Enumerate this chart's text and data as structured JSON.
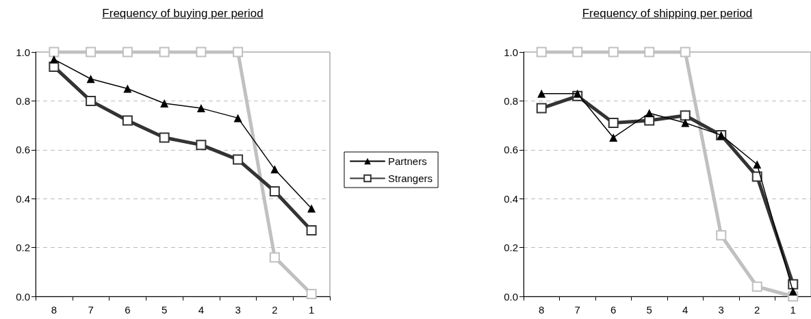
{
  "chart_data": [
    {
      "type": "line",
      "title": "Frequency of buying per period",
      "categories": [
        "8",
        "7",
        "6",
        "5",
        "4",
        "3",
        "2",
        "1"
      ],
      "series": [
        {
          "name": "Partners",
          "color": "#000000",
          "marker": "triangle",
          "values": [
            0.97,
            0.89,
            0.85,
            0.79,
            0.77,
            0.73,
            0.52,
            0.36
          ]
        },
        {
          "name": "Strangers",
          "color": "#333333",
          "marker": "square",
          "values": [
            0.94,
            0.8,
            0.72,
            0.65,
            0.62,
            0.56,
            0.43,
            0.27
          ]
        },
        {
          "color": "#c0c0c0",
          "marker": "square",
          "values": [
            1.0,
            1.0,
            1.0,
            1.0,
            1.0,
            1.0,
            0.16,
            0.01
          ]
        }
      ],
      "ylim": [
        0,
        1
      ],
      "yticks": [
        {
          "value": 0,
          "label": "0.0"
        },
        {
          "value": 0.2,
          "label": "0.2"
        },
        {
          "value": 0.4,
          "label": "0.4"
        },
        {
          "value": 0.6,
          "label": "0.6"
        },
        {
          "value": 0.8,
          "label": "0.8"
        },
        {
          "value": 1,
          "label": "1.0"
        }
      ],
      "grid": "y",
      "legend": "right"
    },
    {
      "type": "line",
      "title": "Frequency of shipping per period",
      "categories": [
        "8",
        "7",
        "6",
        "5",
        "4",
        "3",
        "2",
        "1"
      ],
      "series": [
        {
          "color": "#000000",
          "marker": "triangle",
          "values": [
            0.83,
            0.83,
            0.65,
            0.75,
            0.71,
            0.66,
            0.54,
            0.02
          ]
        },
        {
          "color": "#333333",
          "marker": "square",
          "values": [
            0.77,
            0.82,
            0.71,
            0.72,
            0.74,
            0.66,
            0.49,
            0.05
          ]
        },
        {
          "color": "#c0c0c0",
          "marker": "square",
          "values": [
            1.0,
            1.0,
            1.0,
            1.0,
            1.0,
            0.25,
            0.04,
            0.0
          ]
        }
      ],
      "ylim": [
        0,
        1
      ],
      "yticks": [
        {
          "value": 0,
          "label": "0.0"
        },
        {
          "value": 0.2,
          "label": "0.2"
        },
        {
          "value": 0.4,
          "label": "0.4"
        },
        {
          "value": 0.6,
          "label": "0.6"
        },
        {
          "value": 0.8,
          "label": "0.8"
        },
        {
          "value": 1,
          "label": "1.0"
        }
      ],
      "grid": "y",
      "legend": false
    }
  ]
}
